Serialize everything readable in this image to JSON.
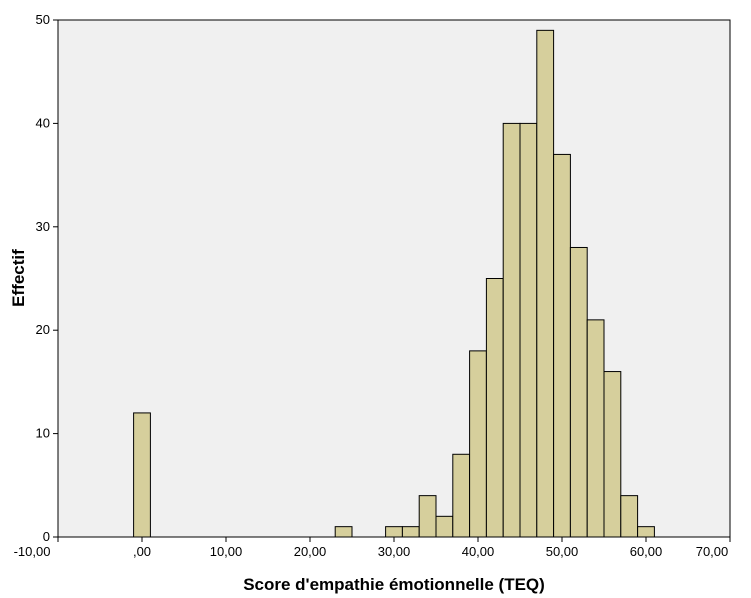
{
  "chart_data": {
    "type": "bar",
    "subtype": "histogram",
    "xlabel": "Score d'empathie émotionnelle (TEQ)",
    "ylabel": "Effectif",
    "xlim": [
      -10,
      70
    ],
    "ylim": [
      0,
      50
    ],
    "x_ticks": [
      -10,
      0,
      10,
      20,
      30,
      40,
      50,
      60,
      70
    ],
    "x_tick_labels": [
      "-10,00",
      ",00",
      "10,00",
      "20,00",
      "30,00",
      "40,00",
      "50,00",
      "60,00",
      "70,00"
    ],
    "y_ticks": [
      0,
      10,
      20,
      30,
      40,
      50
    ],
    "y_tick_labels": [
      "0",
      "10",
      "20",
      "30",
      "40",
      "50"
    ],
    "bin_width": 2,
    "bins": [
      {
        "start": -1,
        "end": 1,
        "count": 12
      },
      {
        "start": 23,
        "end": 25,
        "count": 1
      },
      {
        "start": 29,
        "end": 31,
        "count": 1
      },
      {
        "start": 31,
        "end": 33,
        "count": 1
      },
      {
        "start": 33,
        "end": 35,
        "count": 4
      },
      {
        "start": 35,
        "end": 37,
        "count": 2
      },
      {
        "start": 37,
        "end": 39,
        "count": 8
      },
      {
        "start": 39,
        "end": 41,
        "count": 18
      },
      {
        "start": 41,
        "end": 43,
        "count": 25
      },
      {
        "start": 43,
        "end": 45,
        "count": 40
      },
      {
        "start": 45,
        "end": 47,
        "count": 40
      },
      {
        "start": 47,
        "end": 49,
        "count": 49
      },
      {
        "start": 49,
        "end": 51,
        "count": 37
      },
      {
        "start": 51,
        "end": 53,
        "count": 28
      },
      {
        "start": 53,
        "end": 55,
        "count": 21
      },
      {
        "start": 55,
        "end": 57,
        "count": 16
      },
      {
        "start": 57,
        "end": 59,
        "count": 4
      },
      {
        "start": 59,
        "end": 61,
        "count": 1
      }
    ],
    "grid": false,
    "colors": {
      "bar_fill": "#d6cf9c",
      "bar_stroke": "#000000",
      "plot_background": "#f0f0f0",
      "page_background": "#ffffff"
    }
  }
}
